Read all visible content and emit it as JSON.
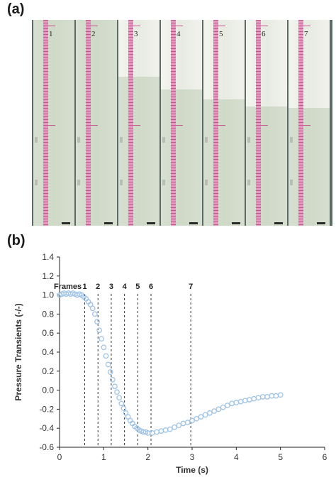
{
  "panel_a": {
    "label": "(a)",
    "frames": [
      "1",
      "2",
      "3",
      "4",
      "5",
      "6",
      "7"
    ]
  },
  "panel_b": {
    "label": "(b)"
  },
  "chart_data": {
    "type": "scatter",
    "xlabel": "Time (s)",
    "ylabel": "Pressure Transients (-/-)",
    "xlim": [
      0,
      6
    ],
    "ylim": [
      -0.6,
      1.4
    ],
    "xticks": [
      0,
      1,
      2,
      3,
      4,
      5,
      6
    ],
    "yticks": [
      -0.6,
      -0.4,
      -0.2,
      0.0,
      0.2,
      0.4,
      0.6,
      0.8,
      1.0,
      1.2,
      1.4
    ],
    "grid": false,
    "marker_color": "#9fc3e6",
    "frames_label": "Frames",
    "frame_lines": [
      {
        "label": "1",
        "x": 0.57
      },
      {
        "label": "2",
        "x": 0.87
      },
      {
        "label": "3",
        "x": 1.17
      },
      {
        "label": "4",
        "x": 1.47
      },
      {
        "label": "5",
        "x": 1.77
      },
      {
        "label": "6",
        "x": 2.07
      },
      {
        "label": "7",
        "x": 2.97
      }
    ],
    "series": [
      {
        "x": [
          0.0,
          0.05,
          0.1,
          0.15,
          0.2,
          0.25,
          0.3,
          0.35,
          0.4,
          0.45,
          0.5,
          0.55,
          0.6,
          0.65,
          0.7,
          0.75,
          0.8,
          0.85,
          0.9,
          0.95,
          1.0,
          1.05,
          1.1,
          1.15,
          1.2,
          1.25,
          1.3,
          1.35,
          1.4,
          1.45,
          1.5,
          1.55,
          1.6,
          1.65,
          1.7,
          1.75,
          1.8,
          1.85,
          1.9,
          1.95,
          2.0,
          2.1,
          2.2,
          2.3,
          2.4,
          2.5,
          2.6,
          2.7,
          2.8,
          2.9,
          3.0,
          3.1,
          3.2,
          3.3,
          3.4,
          3.5,
          3.6,
          3.7,
          3.8,
          3.9,
          4.0,
          4.1,
          4.2,
          4.3,
          4.4,
          4.5,
          4.6,
          4.7,
          4.8,
          4.9,
          5.0
        ],
        "y": [
          1.0,
          1.01,
          1.02,
          1.01,
          1.02,
          1.01,
          1.02,
          1.01,
          1.0,
          1.01,
          1.0,
          0.98,
          0.96,
          0.93,
          0.9,
          0.86,
          0.8,
          0.72,
          0.63,
          0.54,
          0.45,
          0.36,
          0.27,
          0.19,
          0.11,
          0.04,
          -0.02,
          -0.08,
          -0.14,
          -0.19,
          -0.24,
          -0.28,
          -0.32,
          -0.35,
          -0.38,
          -0.4,
          -0.42,
          -0.43,
          -0.44,
          -0.44,
          -0.45,
          -0.45,
          -0.44,
          -0.43,
          -0.42,
          -0.41,
          -0.39,
          -0.37,
          -0.35,
          -0.34,
          -0.32,
          -0.3,
          -0.28,
          -0.26,
          -0.24,
          -0.22,
          -0.2,
          -0.18,
          -0.16,
          -0.14,
          -0.13,
          -0.12,
          -0.11,
          -0.1,
          -0.09,
          -0.08,
          -0.07,
          -0.07,
          -0.06,
          -0.06,
          -0.05
        ]
      }
    ]
  }
}
